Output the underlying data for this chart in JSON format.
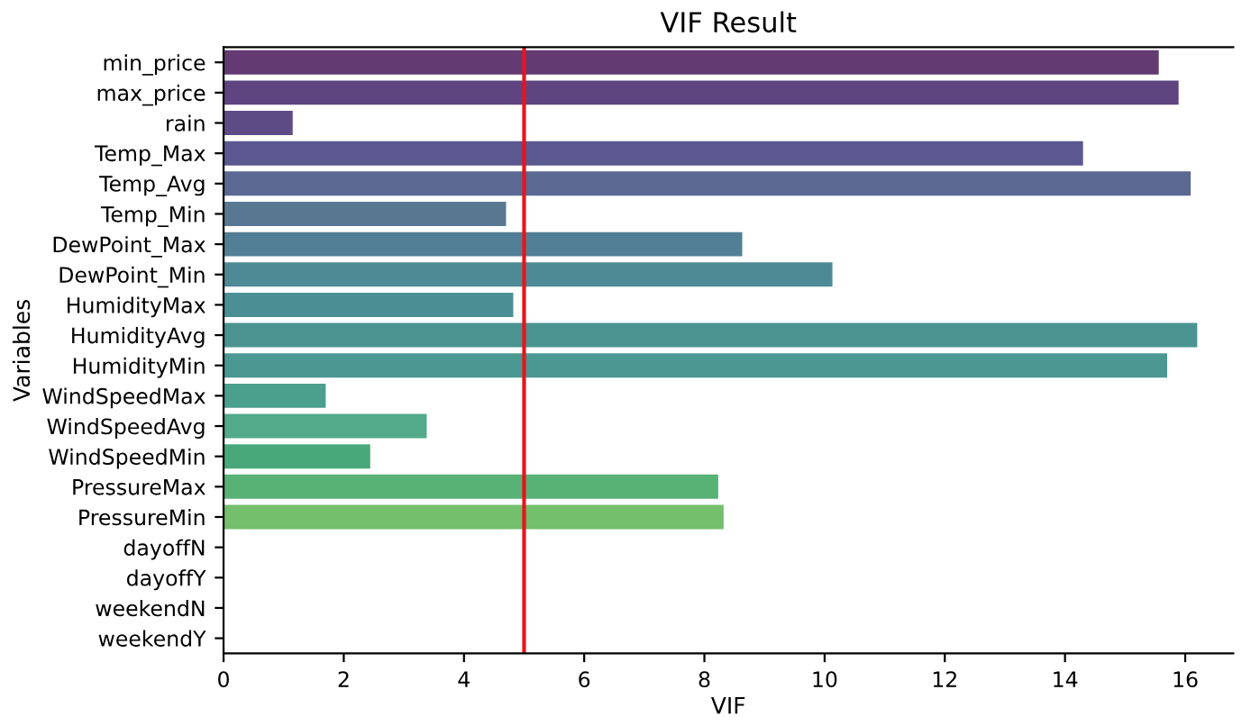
{
  "chart_data": {
    "type": "bar",
    "orientation": "horizontal",
    "title": "VIF Result",
    "xlabel": "VIF",
    "ylabel": "Variables",
    "categories": [
      "min_price",
      "max_price",
      "rain",
      "Temp_Max",
      "Temp_Avg",
      "Temp_Min",
      "DewPoint_Max",
      "DewPoint_Min",
      "HumidityMax",
      "HumidityAvg",
      "HumidityMin",
      "WindSpeedMax",
      "WindSpeedAvg",
      "WindSpeedMin",
      "PressureMax",
      "PressureMin",
      "dayoffN",
      "dayoffY",
      "weekendN",
      "weekendY"
    ],
    "values": [
      15.56,
      15.89,
      1.15,
      14.3,
      16.09,
      4.7,
      8.63,
      10.13,
      4.82,
      16.2,
      15.7,
      1.7,
      3.38,
      2.44,
      8.23,
      8.32,
      null,
      null,
      null,
      null
    ],
    "colors": [
      "#633a72",
      "#5f4580",
      "#5d4b85",
      "#5b5890",
      "#5a6892",
      "#587892",
      "#527f95",
      "#4e8a95",
      "#4b8f94",
      "#4a9391",
      "#4a9891",
      "#4a9f8d",
      "#52aa8a",
      "#49a87a",
      "#58b276",
      "#73bf6c",
      "#8fc85e",
      "#a9d152",
      "#c6da48",
      "#e0e043"
    ],
    "xlim": [
      0,
      16.8
    ],
    "xticks": [
      0,
      2,
      4,
      6,
      8,
      10,
      12,
      14,
      16
    ],
    "ref_lines": [
      {
        "axis": "x",
        "value": 5,
        "color": "#e8141c"
      }
    ],
    "grid": false,
    "legend": false
  }
}
